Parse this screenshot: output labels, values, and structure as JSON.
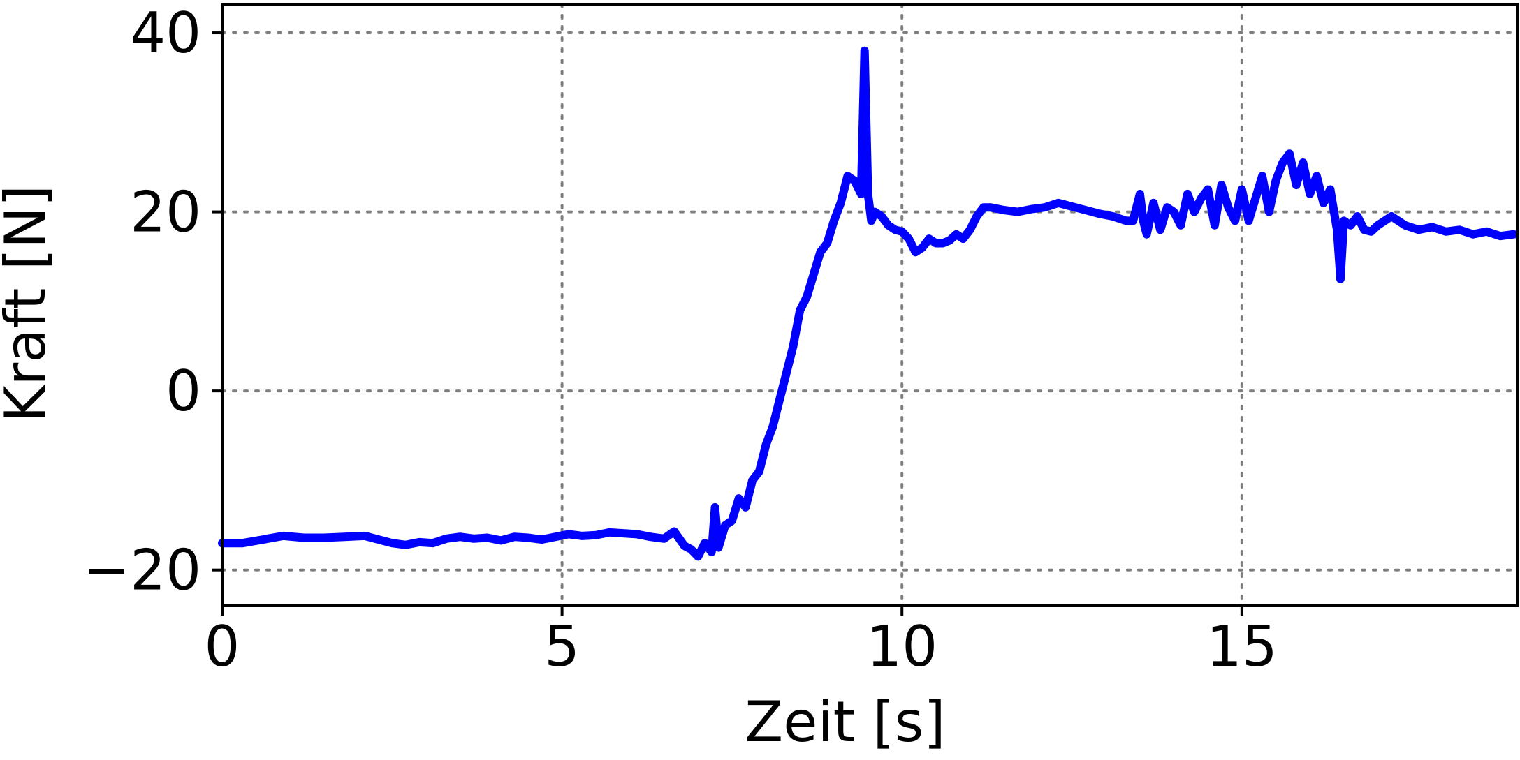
{
  "chart_data": {
    "type": "line",
    "title": "",
    "xlabel": "Zeit [s]",
    "ylabel": "Kraft [N]",
    "xlim": [
      0,
      19.05
    ],
    "ylim": [
      -24,
      43.2
    ],
    "xticks": [
      0,
      5,
      10,
      15
    ],
    "xtick_labels": [
      "0",
      "5",
      "10",
      "15"
    ],
    "yticks": [
      -20,
      0,
      20,
      40
    ],
    "ytick_labels": [
      "−20",
      "0",
      "20",
      "40"
    ],
    "grid": true,
    "legend": "none",
    "series": [
      {
        "color": "#0000ff",
        "x": [
          0.0,
          0.3,
          0.6,
          0.9,
          1.2,
          1.5,
          1.8,
          2.1,
          2.3,
          2.5,
          2.7,
          2.9,
          3.1,
          3.3,
          3.5,
          3.7,
          3.9,
          4.1,
          4.3,
          4.5,
          4.7,
          4.9,
          5.1,
          5.3,
          5.5,
          5.7,
          5.9,
          6.1,
          6.3,
          6.5,
          6.65,
          6.8,
          6.9,
          7.0,
          7.1,
          7.2,
          7.25,
          7.3,
          7.4,
          7.5,
          7.6,
          7.7,
          7.8,
          7.9,
          8.0,
          8.1,
          8.2,
          8.3,
          8.4,
          8.5,
          8.6,
          8.7,
          8.8,
          8.9,
          9.0,
          9.1,
          9.2,
          9.3,
          9.4,
          9.45,
          9.5,
          9.55,
          9.6,
          9.7,
          9.8,
          9.9,
          10.0,
          10.1,
          10.2,
          10.3,
          10.4,
          10.5,
          10.6,
          10.7,
          10.8,
          10.9,
          11.0,
          11.1,
          11.2,
          11.3,
          11.5,
          11.7,
          11.9,
          12.1,
          12.3,
          12.5,
          12.7,
          12.9,
          13.1,
          13.3,
          13.4,
          13.5,
          13.55,
          13.6,
          13.7,
          13.8,
          13.9,
          14.0,
          14.1,
          14.2,
          14.3,
          14.4,
          14.5,
          14.6,
          14.7,
          14.8,
          14.9,
          15.0,
          15.1,
          15.2,
          15.3,
          15.4,
          15.5,
          15.6,
          15.7,
          15.8,
          15.9,
          16.0,
          16.1,
          16.2,
          16.3,
          16.4,
          16.45,
          16.5,
          16.6,
          16.7,
          16.8,
          16.9,
          17.0,
          17.2,
          17.4,
          17.6,
          17.8,
          18.0,
          18.2,
          18.4,
          18.6,
          18.8,
          19.0
        ],
        "y": [
          -17.0,
          -17.0,
          -16.6,
          -16.2,
          -16.4,
          -16.4,
          -16.3,
          -16.2,
          -16.6,
          -17.0,
          -17.2,
          -16.9,
          -17.0,
          -16.5,
          -16.3,
          -16.5,
          -16.4,
          -16.7,
          -16.3,
          -16.4,
          -16.6,
          -16.3,
          -16.0,
          -16.2,
          -16.1,
          -15.8,
          -15.9,
          -16.0,
          -16.3,
          -16.5,
          -15.7,
          -17.3,
          -17.7,
          -18.5,
          -17.0,
          -18.0,
          -13.0,
          -17.5,
          -15.0,
          -14.5,
          -12.0,
          -13.0,
          -10.0,
          -9.0,
          -6.0,
          -4.0,
          -1.0,
          2.0,
          5.0,
          9.0,
          10.5,
          13.0,
          15.5,
          16.5,
          19.0,
          21.0,
          24.0,
          23.5,
          22.0,
          38.0,
          22.0,
          19.0,
          20.0,
          19.5,
          18.5,
          18.0,
          17.8,
          17.0,
          15.5,
          16.0,
          17.0,
          16.5,
          16.5,
          16.8,
          17.5,
          17.0,
          18.0,
          19.5,
          20.5,
          20.5,
          20.2,
          20.0,
          20.3,
          20.5,
          21.0,
          20.6,
          20.2,
          19.8,
          19.5,
          19.0,
          19.0,
          22.0,
          19.0,
          17.5,
          21.0,
          18.0,
          20.5,
          20.0,
          18.5,
          22.0,
          20.0,
          21.5,
          22.5,
          18.5,
          23.0,
          20.5,
          19.0,
          22.5,
          19.0,
          21.5,
          24.0,
          20.0,
          23.5,
          25.5,
          26.5,
          23.0,
          25.5,
          22.0,
          24.0,
          21.0,
          22.5,
          18.0,
          12.5,
          19.0,
          18.5,
          19.5,
          18.0,
          17.8,
          18.5,
          19.5,
          18.5,
          18.0,
          18.3,
          17.8,
          18.0,
          17.5,
          17.8,
          17.3,
          17.5
        ]
      }
    ]
  }
}
